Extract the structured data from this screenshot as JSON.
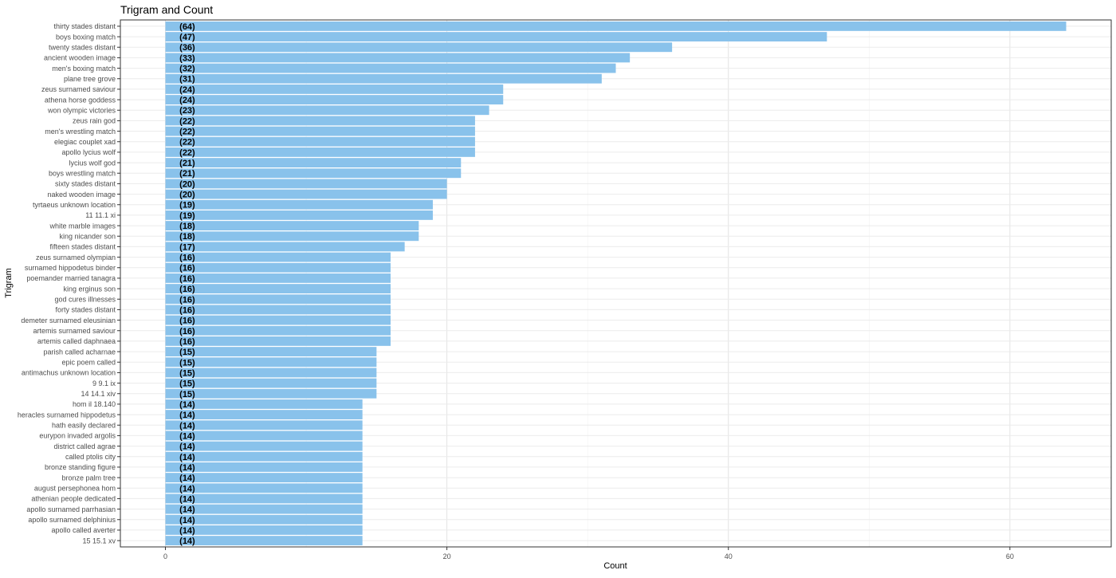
{
  "chart_data": {
    "type": "bar",
    "orientation": "horizontal",
    "title": "Trigram and Count",
    "xlabel": "Count",
    "ylabel": "Trigram",
    "xlim": [
      -3.2,
      67.2
    ],
    "x_ticks": [
      0,
      20,
      40,
      60
    ],
    "grid": true,
    "bar_color": "#89C2EB",
    "categories": [
      "thirty stades distant",
      "boys boxing match",
      "twenty stades distant",
      "ancient wooden image",
      "men's boxing match",
      "plane tree grove",
      "zeus surnamed saviour",
      "athena horse goddess",
      "won olympic victories",
      "zeus rain god",
      "men's wrestling match",
      "elegiac couplet xad",
      "apollo lycius wolf",
      "lycius wolf god",
      "boys wrestling match",
      "sixty stades distant",
      "naked wooden image",
      "tyrtaeus unknown location",
      "11 11.1 xi",
      "white marble images",
      "king nicander son",
      "fifteen stades distant",
      "zeus surnamed olympian",
      "surnamed hippodetus binder",
      "poemander married tanagra",
      "king erginus son",
      "god cures illnesses",
      "forty stades distant",
      "demeter surnamed eleusinian",
      "artemis surnamed saviour",
      "artemis called daphnaea",
      "parish called acharnae",
      "epic poem called",
      "antimachus unknown location",
      "9 9.1 ix",
      "14 14.1 xiv",
      "hom il 18.140",
      "heracles surnamed hippodetus",
      "hath easily declared",
      "eurypon invaded argolis",
      "district called agrae",
      "called ptolis city",
      "bronze standing figure",
      "bronze palm tree",
      "august persephonea hom",
      "athenian people dedicated",
      "apollo surnamed parrhasian",
      "apollo surnamed delphinius",
      "apollo called averter",
      "15 15.1 xv"
    ],
    "values": [
      64,
      47,
      36,
      33,
      32,
      31,
      24,
      24,
      23,
      22,
      22,
      22,
      22,
      21,
      21,
      20,
      20,
      19,
      19,
      18,
      18,
      17,
      16,
      16,
      16,
      16,
      16,
      16,
      16,
      16,
      16,
      15,
      15,
      15,
      15,
      15,
      14,
      14,
      14,
      14,
      14,
      14,
      14,
      14,
      14,
      14,
      14,
      14,
      14,
      14
    ],
    "labels": [
      "(64)",
      "(47)",
      "(36)",
      "(33)",
      "(32)",
      "(31)",
      "(24)",
      "(24)",
      "(23)",
      "(22)",
      "(22)",
      "(22)",
      "(22)",
      "(21)",
      "(21)",
      "(20)",
      "(20)",
      "(19)",
      "(19)",
      "(18)",
      "(18)",
      "(17)",
      "(16)",
      "(16)",
      "(16)",
      "(16)",
      "(16)",
      "(16)",
      "(16)",
      "(16)",
      "(16)",
      "(15)",
      "(15)",
      "(15)",
      "(15)",
      "(15)",
      "(14)",
      "(14)",
      "(14)",
      "(14)",
      "(14)",
      "(14)",
      "(14)",
      "(14)",
      "(14)",
      "(14)",
      "(14)",
      "(14)",
      "(14)",
      "(14)"
    ],
    "data_label_x": 1
  }
}
